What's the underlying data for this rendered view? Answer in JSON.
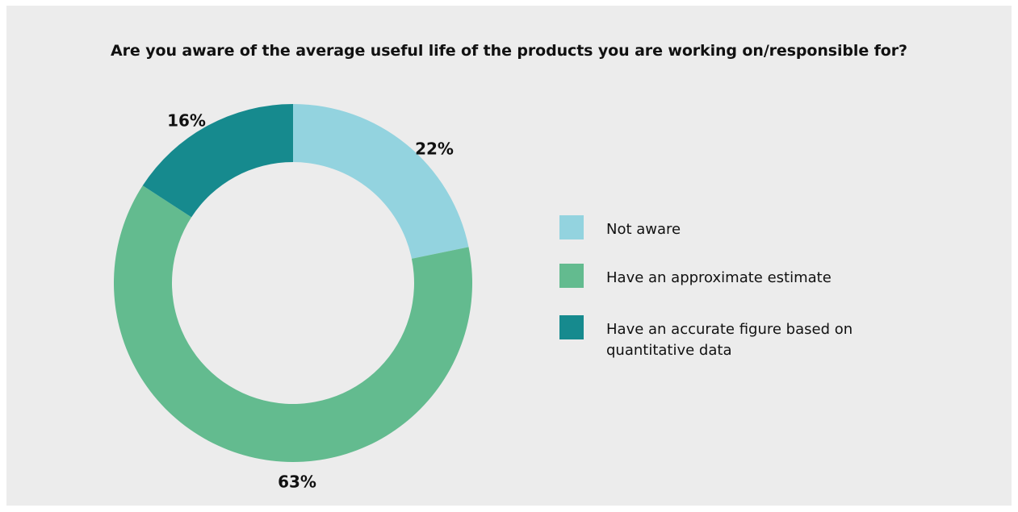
{
  "chart_data": {
    "type": "pie",
    "title": "Are you aware of the average useful life of the products you are working on/responsible for?",
    "categories": [
      "Not aware",
      "Have an approximate estimate",
      "Have an accurate figure based on quantitative data"
    ],
    "values": [
      22,
      63,
      16
    ],
    "value_labels": [
      "22%",
      "63%",
      "16%"
    ],
    "colors": [
      "#93d3df",
      "#63bb8f",
      "#168a8e"
    ],
    "donut": true,
    "legend_position": "right"
  }
}
